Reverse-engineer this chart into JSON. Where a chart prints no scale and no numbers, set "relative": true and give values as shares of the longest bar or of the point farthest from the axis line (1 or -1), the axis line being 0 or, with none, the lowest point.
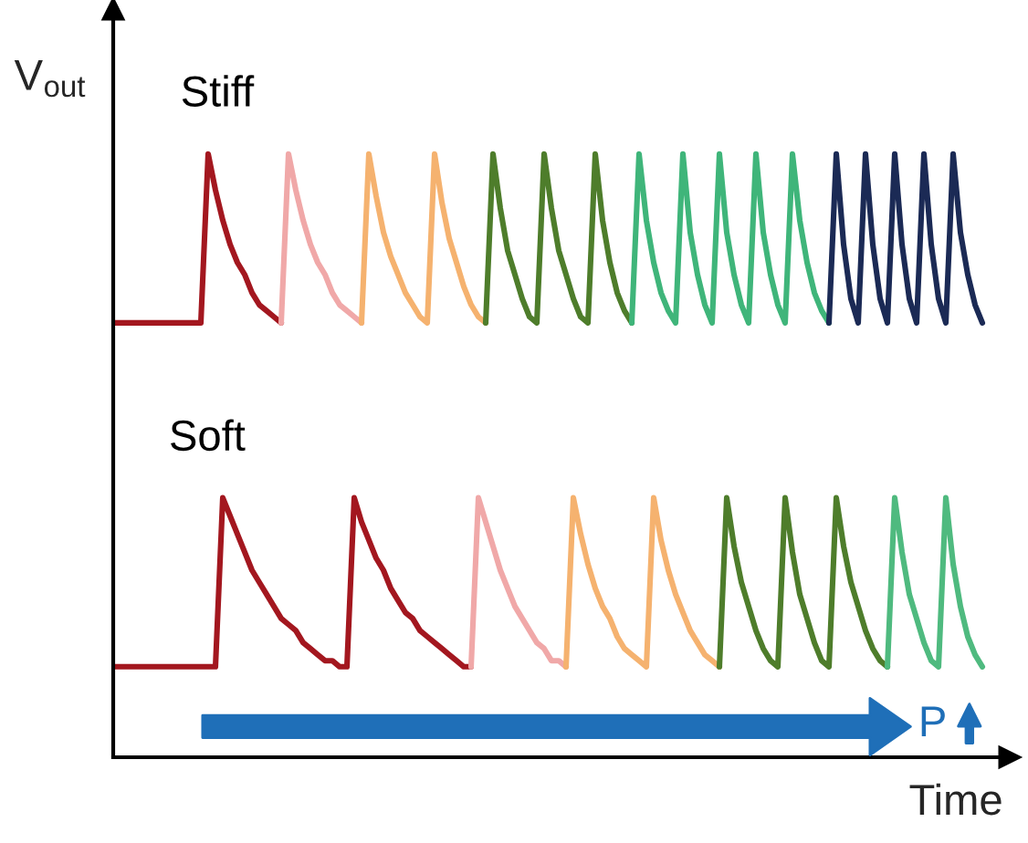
{
  "chart_data": {
    "type": "line",
    "relative": true,
    "xlabel": "Time",
    "ylabel": "V$_{out}$",
    "annotations": [
      "Stiff",
      "Soft",
      "P"
    ],
    "legend": false,
    "grid": false,
    "line_style": "solid",
    "categories": [
      null,
      null,
      null,
      null,
      null,
      null,
      null,
      null,
      null,
      null,
      null,
      null,
      null,
      null,
      null,
      null,
      null,
      null,
      null,
      null,
      null,
      null,
      null,
      null,
      null,
      null,
      null,
      null,
      null,
      null,
      null,
      null,
      null,
      null,
      null,
      null,
      null,
      null,
      null,
      null,
      null,
      null,
      null,
      null,
      null,
      null,
      null,
      null,
      null,
      null,
      null,
      null,
      null,
      null,
      null,
      null,
      null,
      null,
      null,
      null,
      null,
      null,
      null,
      null,
      null,
      null,
      null,
      null,
      null,
      null,
      null,
      null,
      null,
      null,
      null,
      null,
      null,
      null,
      null,
      null,
      null,
      null,
      null,
      null,
      null,
      null,
      null,
      null,
      null,
      null,
      null,
      null,
      null,
      null,
      null,
      null,
      null,
      null,
      null,
      null,
      null,
      null,
      null,
      null,
      null,
      null,
      null,
      null,
      null,
      null,
      null,
      null,
      null,
      null,
      null,
      null,
      null,
      null,
      null,
      null,
      null,
      null
    ],
    "series": [
      {
        "color": "#a3171f",
        "values": [
          0.72,
          0.72,
          0.72,
          0.72,
          0.72,
          0.72,
          0.72,
          0.72,
          0.72,
          0.72,
          0.72,
          0.72,
          0.72,
          1.0,
          0.94,
          0.89,
          0.85,
          0.82,
          0.8,
          0.77,
          0.75,
          0.74,
          0.73,
          0.72,
          null,
          null,
          null,
          null,
          null,
          null,
          null,
          null,
          null,
          null,
          null,
          null,
          null,
          null,
          null,
          null,
          null,
          null,
          null,
          null,
          null,
          null,
          null,
          null,
          null,
          null,
          null,
          null,
          null,
          null,
          null,
          null,
          null,
          null,
          null,
          null,
          null,
          null,
          null,
          null,
          null,
          null,
          null,
          null,
          null,
          null,
          null,
          null,
          null,
          null,
          null,
          null,
          null,
          null,
          null,
          null,
          null,
          null,
          null,
          null,
          null,
          null,
          null,
          null,
          null,
          null,
          null,
          null,
          null,
          null,
          null,
          null,
          null,
          null,
          null,
          null,
          null,
          null,
          null,
          null,
          null,
          null,
          null,
          null,
          null,
          null,
          null,
          null,
          null,
          null,
          null,
          null,
          null,
          null,
          null,
          null,
          null,
          null
        ]
      },
      {
        "color": "#f0a8a8",
        "values": [
          null,
          null,
          null,
          null,
          null,
          null,
          null,
          null,
          null,
          null,
          null,
          null,
          null,
          null,
          null,
          null,
          null,
          null,
          null,
          null,
          null,
          null,
          null,
          0.72,
          1.0,
          0.94,
          0.89,
          0.85,
          0.82,
          0.8,
          0.77,
          0.75,
          0.74,
          0.73,
          0.72,
          null,
          null,
          null,
          null,
          null,
          null,
          null,
          null,
          null,
          null,
          null,
          null,
          null,
          null,
          null,
          null,
          null,
          null,
          null,
          null,
          null,
          null,
          null,
          null,
          null,
          null,
          null,
          null,
          null,
          null,
          null,
          null,
          null,
          null,
          null,
          null,
          null,
          null,
          null,
          null,
          null,
          null,
          null,
          null,
          null,
          null,
          null,
          null,
          null,
          null,
          null,
          null,
          null,
          null,
          null,
          null,
          null,
          null,
          null,
          null,
          null,
          null,
          null,
          null,
          null,
          null,
          null,
          null,
          null,
          null,
          null,
          null,
          null,
          null,
          null,
          null,
          null,
          null,
          null,
          null,
          null,
          null,
          null,
          null,
          null,
          null,
          null
        ]
      },
      {
        "color": "#f5b26f",
        "values": [
          null,
          null,
          null,
          null,
          null,
          null,
          null,
          null,
          null,
          null,
          null,
          null,
          null,
          null,
          null,
          null,
          null,
          null,
          null,
          null,
          null,
          null,
          null,
          null,
          null,
          null,
          null,
          null,
          null,
          null,
          null,
          null,
          null,
          null,
          0.72,
          1.0,
          0.93,
          0.87,
          0.83,
          0.8,
          0.77,
          0.75,
          0.73,
          0.72,
          1.0,
          0.92,
          0.86,
          0.82,
          0.78,
          0.75,
          0.73,
          0.72,
          null,
          null,
          null,
          null,
          null,
          null,
          null,
          null,
          null,
          null,
          null,
          null,
          null,
          null,
          null,
          null,
          null,
          null,
          null,
          null,
          null,
          null,
          null,
          null,
          null,
          null,
          null,
          null,
          null,
          null,
          null,
          null,
          null,
          null,
          null,
          null,
          null,
          null,
          null,
          null,
          null,
          null,
          null,
          null,
          null,
          null,
          null,
          null,
          null,
          null,
          null,
          null,
          null,
          null,
          null,
          null,
          null,
          null,
          null,
          null,
          null,
          null,
          null,
          null,
          null,
          null,
          null,
          null,
          null,
          null
        ]
      },
      {
        "color": "#4e7d2b",
        "values": [
          null,
          null,
          null,
          null,
          null,
          null,
          null,
          null,
          null,
          null,
          null,
          null,
          null,
          null,
          null,
          null,
          null,
          null,
          null,
          null,
          null,
          null,
          null,
          null,
          null,
          null,
          null,
          null,
          null,
          null,
          null,
          null,
          null,
          null,
          null,
          null,
          null,
          null,
          null,
          null,
          null,
          null,
          null,
          null,
          null,
          null,
          null,
          null,
          null,
          null,
          null,
          0.72,
          1.0,
          0.91,
          0.84,
          0.8,
          0.76,
          0.73,
          0.72,
          1.0,
          0.91,
          0.84,
          0.8,
          0.76,
          0.73,
          0.72,
          1.0,
          0.89,
          0.82,
          0.77,
          0.74,
          0.72,
          null,
          null,
          null,
          null,
          null,
          null,
          null,
          null,
          null,
          null,
          null,
          null,
          null,
          null,
          null,
          null,
          null,
          null,
          null,
          null,
          null,
          null,
          null,
          null,
          null,
          null,
          null,
          null,
          null,
          null,
          null,
          null,
          null,
          null,
          null,
          null,
          null,
          null,
          null,
          null,
          null,
          null,
          null,
          null,
          null,
          null,
          null,
          null,
          null,
          null
        ]
      },
      {
        "color": "#3fb57a",
        "values": [
          null,
          null,
          null,
          null,
          null,
          null,
          null,
          null,
          null,
          null,
          null,
          null,
          null,
          null,
          null,
          null,
          null,
          null,
          null,
          null,
          null,
          null,
          null,
          null,
          null,
          null,
          null,
          null,
          null,
          null,
          null,
          null,
          null,
          null,
          null,
          null,
          null,
          null,
          null,
          null,
          null,
          null,
          null,
          null,
          null,
          null,
          null,
          null,
          null,
          null,
          null,
          null,
          null,
          null,
          null,
          null,
          null,
          null,
          null,
          null,
          null,
          null,
          null,
          null,
          null,
          null,
          null,
          null,
          null,
          null,
          null,
          0.72,
          1.0,
          0.89,
          0.82,
          0.77,
          0.74,
          0.72,
          1.0,
          0.87,
          0.8,
          0.75,
          0.72,
          1.0,
          0.87,
          0.8,
          0.75,
          0.72,
          1.0,
          0.87,
          0.8,
          0.75,
          0.72,
          1.0,
          0.89,
          0.82,
          0.77,
          0.74,
          0.72,
          null,
          null,
          null,
          null,
          null,
          null,
          null,
          null,
          null,
          null,
          null,
          null,
          null,
          null,
          null,
          null,
          null,
          null,
          null,
          null,
          null,
          null,
          null
        ]
      },
      {
        "color": "#1b2a55",
        "values": [
          null,
          null,
          null,
          null,
          null,
          null,
          null,
          null,
          null,
          null,
          null,
          null,
          null,
          null,
          null,
          null,
          null,
          null,
          null,
          null,
          null,
          null,
          null,
          null,
          null,
          null,
          null,
          null,
          null,
          null,
          null,
          null,
          null,
          null,
          null,
          null,
          null,
          null,
          null,
          null,
          null,
          null,
          null,
          null,
          null,
          null,
          null,
          null,
          null,
          null,
          null,
          null,
          null,
          null,
          null,
          null,
          null,
          null,
          null,
          null,
          null,
          null,
          null,
          null,
          null,
          null,
          null,
          null,
          null,
          null,
          null,
          null,
          null,
          null,
          null,
          null,
          null,
          null,
          null,
          null,
          null,
          null,
          null,
          null,
          null,
          null,
          null,
          null,
          null,
          null,
          null,
          null,
          null,
          null,
          null,
          null,
          null,
          null,
          0.72,
          1.0,
          0.85,
          0.76,
          0.72,
          1.0,
          0.85,
          0.76,
          0.72,
          1.0,
          0.85,
          0.76,
          0.72,
          1.0,
          0.85,
          0.76,
          0.72,
          1.0,
          0.87,
          0.8,
          0.75,
          0.72,
          null,
          null
        ]
      },
      {
        "color": "#a3171f",
        "values": [
          0.15,
          0.15,
          0.15,
          0.15,
          0.15,
          0.15,
          0.15,
          0.15,
          0.15,
          0.15,
          0.15,
          0.15,
          0.15,
          0.15,
          0.15,
          0.43,
          0.4,
          0.37,
          0.34,
          0.31,
          0.29,
          0.27,
          0.25,
          0.23,
          0.22,
          0.21,
          0.19,
          0.18,
          0.17,
          0.16,
          0.16,
          0.15,
          0.15,
          0.43,
          0.39,
          0.36,
          0.33,
          0.31,
          0.28,
          0.26,
          0.24,
          0.23,
          0.21,
          0.2,
          0.19,
          0.18,
          0.17,
          0.16,
          0.15,
          0.15,
          null,
          null,
          null,
          null,
          null,
          null,
          null,
          null,
          null,
          null,
          null,
          null,
          null,
          null,
          null,
          null,
          null,
          null,
          null,
          null,
          null,
          null,
          null,
          null,
          null,
          null,
          null,
          null,
          null,
          null,
          null,
          null,
          null,
          null,
          null,
          null,
          null,
          null,
          null,
          null,
          null,
          null,
          null,
          null,
          null,
          null,
          null,
          null,
          null,
          null,
          null,
          null,
          null,
          null,
          null,
          null,
          null,
          null,
          null,
          null,
          null,
          null,
          null,
          null,
          null,
          null,
          null,
          null,
          null,
          null,
          null,
          null
        ]
      },
      {
        "color": "#f0a8a8",
        "values": [
          null,
          null,
          null,
          null,
          null,
          null,
          null,
          null,
          null,
          null,
          null,
          null,
          null,
          null,
          null,
          null,
          null,
          null,
          null,
          null,
          null,
          null,
          null,
          null,
          null,
          null,
          null,
          null,
          null,
          null,
          null,
          null,
          null,
          null,
          null,
          null,
          null,
          null,
          null,
          null,
          null,
          null,
          null,
          null,
          null,
          null,
          null,
          null,
          null,
          0.15,
          0.43,
          0.39,
          0.35,
          0.31,
          0.28,
          0.25,
          0.23,
          0.21,
          0.19,
          0.18,
          0.16,
          0.16,
          0.15,
          null,
          null,
          null,
          null,
          null,
          null,
          null,
          null,
          null,
          null,
          null,
          null,
          null,
          null,
          null,
          null,
          null,
          null,
          null,
          null,
          null,
          null,
          null,
          null,
          null,
          null,
          null,
          null,
          null,
          null,
          null,
          null,
          null,
          null,
          null,
          null,
          null,
          null,
          null,
          null,
          null,
          null,
          null,
          null,
          null,
          null,
          null,
          null,
          null,
          null,
          null,
          null,
          null,
          null,
          null,
          null,
          null,
          null,
          null
        ]
      },
      {
        "color": "#f5b26f",
        "values": [
          null,
          null,
          null,
          null,
          null,
          null,
          null,
          null,
          null,
          null,
          null,
          null,
          null,
          null,
          null,
          null,
          null,
          null,
          null,
          null,
          null,
          null,
          null,
          null,
          null,
          null,
          null,
          null,
          null,
          null,
          null,
          null,
          null,
          null,
          null,
          null,
          null,
          null,
          null,
          null,
          null,
          null,
          null,
          null,
          null,
          null,
          null,
          null,
          null,
          null,
          null,
          null,
          null,
          null,
          null,
          null,
          null,
          null,
          null,
          null,
          null,
          null,
          0.15,
          0.43,
          0.37,
          0.32,
          0.28,
          0.25,
          0.23,
          0.2,
          0.18,
          0.17,
          0.16,
          0.15,
          0.43,
          0.36,
          0.31,
          0.27,
          0.24,
          0.21,
          0.19,
          0.17,
          0.16,
          0.15,
          null,
          null,
          null,
          null,
          null,
          null,
          null,
          null,
          null,
          null,
          null,
          null,
          null,
          null,
          null,
          null,
          null,
          null,
          null,
          null,
          null,
          null,
          null,
          null,
          null,
          null,
          null,
          null,
          null,
          null,
          null,
          null,
          null,
          null,
          null,
          null,
          null,
          null
        ]
      },
      {
        "color": "#4e7d2b",
        "values": [
          null,
          null,
          null,
          null,
          null,
          null,
          null,
          null,
          null,
          null,
          null,
          null,
          null,
          null,
          null,
          null,
          null,
          null,
          null,
          null,
          null,
          null,
          null,
          null,
          null,
          null,
          null,
          null,
          null,
          null,
          null,
          null,
          null,
          null,
          null,
          null,
          null,
          null,
          null,
          null,
          null,
          null,
          null,
          null,
          null,
          null,
          null,
          null,
          null,
          null,
          null,
          null,
          null,
          null,
          null,
          null,
          null,
          null,
          null,
          null,
          null,
          null,
          null,
          null,
          null,
          null,
          null,
          null,
          null,
          null,
          null,
          null,
          null,
          null,
          null,
          null,
          null,
          null,
          null,
          null,
          null,
          null,
          null,
          0.15,
          0.43,
          0.35,
          0.29,
          0.25,
          0.21,
          0.18,
          0.16,
          0.15,
          0.43,
          0.34,
          0.27,
          0.23,
          0.19,
          0.16,
          0.15,
          0.43,
          0.35,
          0.29,
          0.25,
          0.21,
          0.18,
          0.16,
          0.15,
          null,
          null,
          null,
          null,
          null,
          null,
          null,
          null,
          null,
          null,
          null,
          null,
          null,
          null,
          null
        ]
      },
      {
        "color": "#4fba7f",
        "values": [
          null,
          null,
          null,
          null,
          null,
          null,
          null,
          null,
          null,
          null,
          null,
          null,
          null,
          null,
          null,
          null,
          null,
          null,
          null,
          null,
          null,
          null,
          null,
          null,
          null,
          null,
          null,
          null,
          null,
          null,
          null,
          null,
          null,
          null,
          null,
          null,
          null,
          null,
          null,
          null,
          null,
          null,
          null,
          null,
          null,
          null,
          null,
          null,
          null,
          null,
          null,
          null,
          null,
          null,
          null,
          null,
          null,
          null,
          null,
          null,
          null,
          null,
          null,
          null,
          null,
          null,
          null,
          null,
          null,
          null,
          null,
          null,
          null,
          null,
          null,
          null,
          null,
          null,
          null,
          null,
          null,
          null,
          null,
          null,
          null,
          null,
          null,
          null,
          null,
          null,
          null,
          null,
          null,
          null,
          null,
          null,
          null,
          null,
          null,
          null,
          null,
          null,
          null,
          null,
          null,
          null,
          0.15,
          0.43,
          0.34,
          0.27,
          0.23,
          0.19,
          0.16,
          0.15,
          0.43,
          0.32,
          0.25,
          0.2,
          0.17,
          0.15,
          null,
          null
        ]
      }
    ]
  }
}
